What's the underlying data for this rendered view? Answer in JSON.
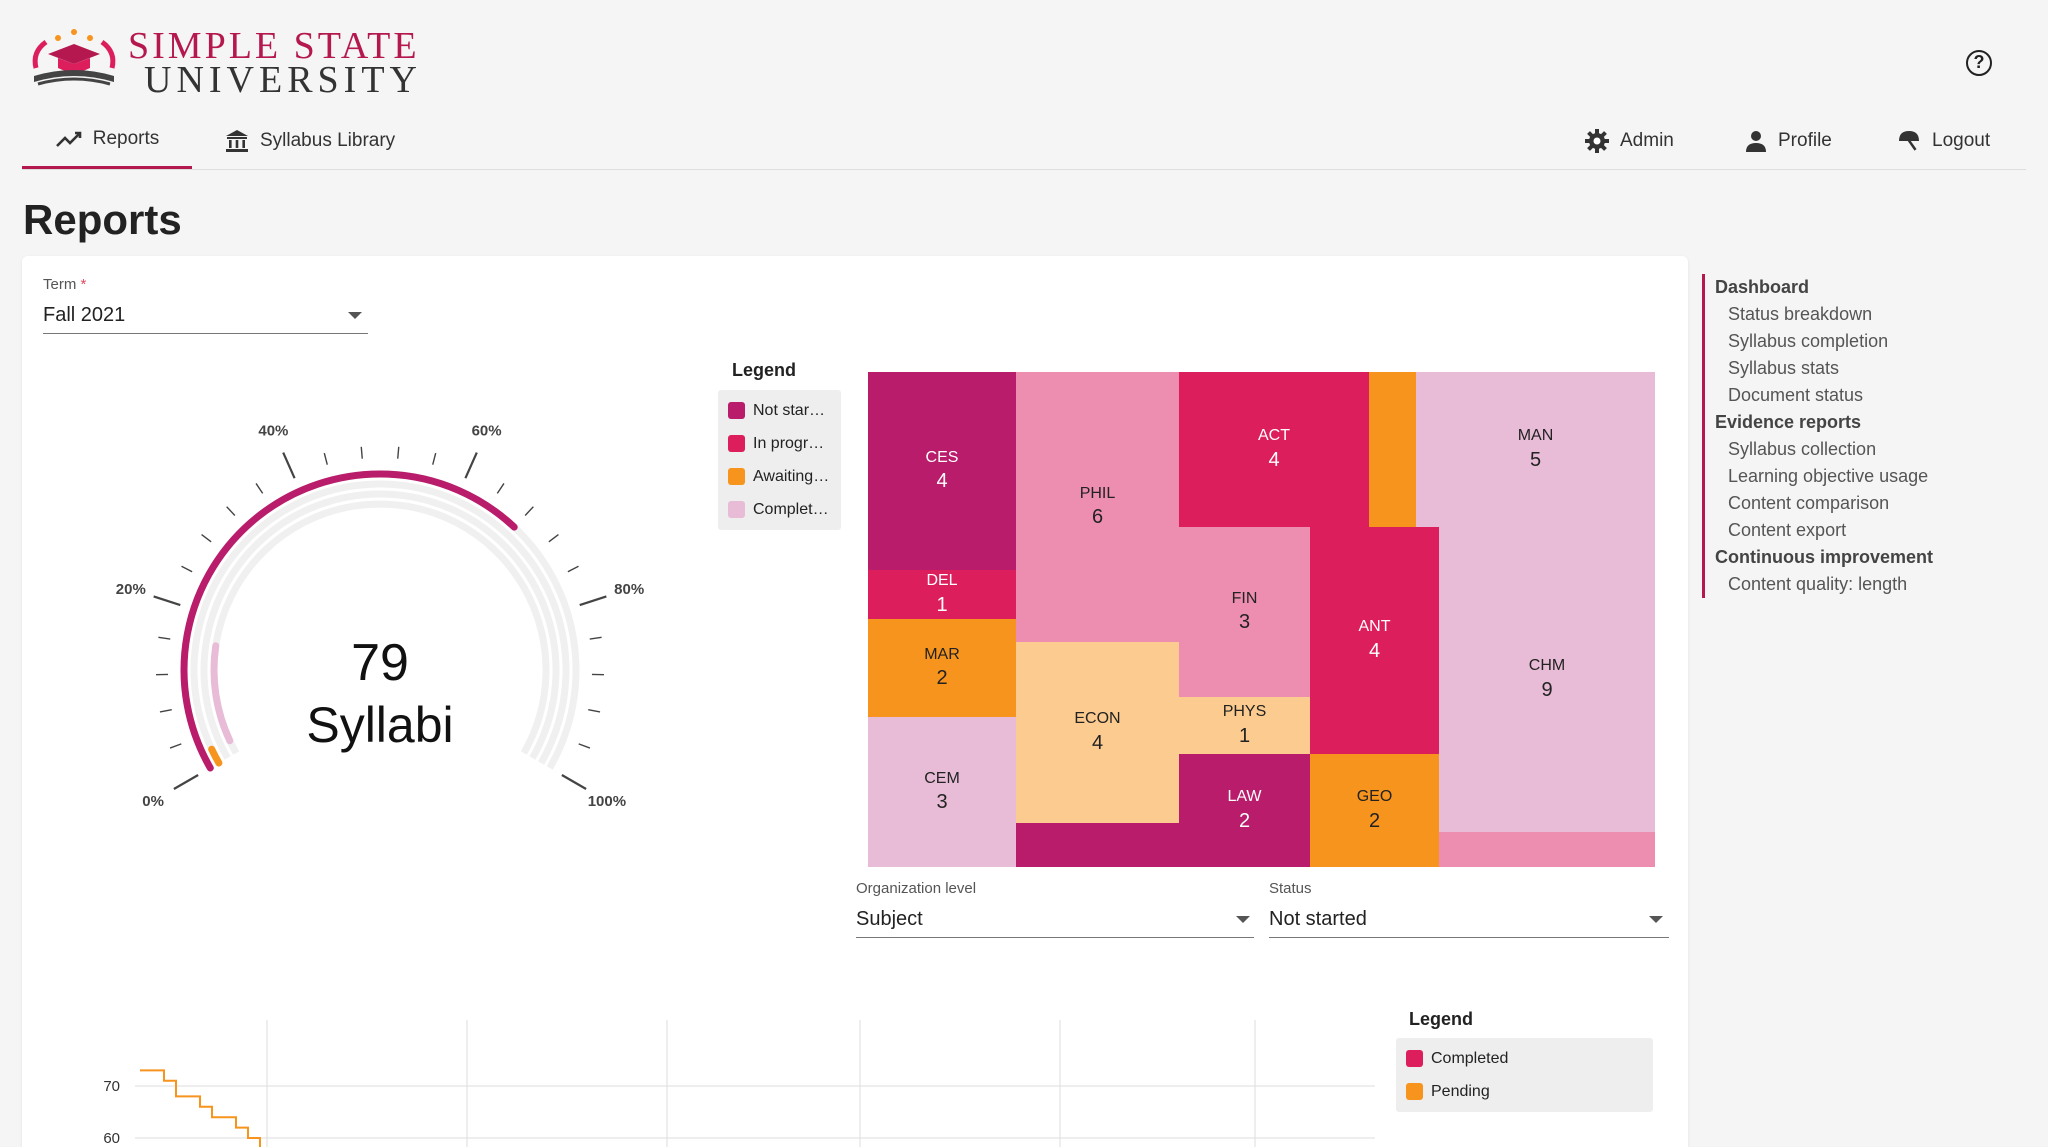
{
  "brand": {
    "name_line1": "SIMPLE STATE",
    "name_line2": "UNIVERSITY",
    "colors": {
      "primary": "#b5184f",
      "secondary": "#333333"
    }
  },
  "nav": {
    "tabs": [
      {
        "label": "Reports",
        "icon": "trend-line-icon",
        "active": true
      },
      {
        "label": "Syllabus Library",
        "icon": "library-building-icon",
        "active": false
      }
    ],
    "right": [
      {
        "label": "Admin",
        "icon": "gear-icon"
      },
      {
        "label": "Profile",
        "icon": "person-icon"
      },
      {
        "label": "Logout",
        "icon": "logout-icon"
      }
    ],
    "help_icon": "help-circle-icon",
    "help_glyph": "?"
  },
  "page": {
    "title": "Reports"
  },
  "filters": {
    "term": {
      "label": "Term",
      "required_mark": "*",
      "value": "Fall 2021"
    },
    "organization_level": {
      "label": "Organization level",
      "value": "Subject"
    },
    "status": {
      "label": "Status",
      "value": "Not started"
    }
  },
  "gauge": {
    "value": "79",
    "unit": "Syllabi",
    "tick_labels": [
      "0%",
      "20%",
      "40%",
      "60%",
      "80%",
      "100%"
    ],
    "fractions": {
      "not_started": 0.68,
      "in_progress": 0.16,
      "awaiting": 0.02
    }
  },
  "status_legend": {
    "title": "Legend",
    "items": [
      {
        "label": "Not star…",
        "color": "#b81c6b"
      },
      {
        "label": "In progr…",
        "color": "#dc1f5c"
      },
      {
        "label": "Awaiting…",
        "color": "#f7941d"
      },
      {
        "label": "Complet…",
        "color": "#e8bcd6"
      }
    ]
  },
  "treemap": {
    "tiles": [
      {
        "code": "CES",
        "count": "4"
      },
      {
        "code": "DEL",
        "count": "1"
      },
      {
        "code": "MAR",
        "count": "2"
      },
      {
        "code": "CEM",
        "count": "3"
      },
      {
        "code": "PHIL",
        "count": "6"
      },
      {
        "code": "ECON",
        "count": "4"
      },
      {
        "code": "ACT",
        "count": "4"
      },
      {
        "code": "FIN",
        "count": "3"
      },
      {
        "code": "PHYS",
        "count": "1"
      },
      {
        "code": "LAW",
        "count": "2"
      },
      {
        "code": "ANT",
        "count": "4"
      },
      {
        "code": "GEO",
        "count": "2"
      },
      {
        "code": "MAN",
        "count": "5"
      },
      {
        "code": "CHM",
        "count": "9"
      }
    ]
  },
  "chart_data": {
    "type": "line",
    "y_ticks": [
      "70",
      "60"
    ],
    "legend": {
      "title": "Legend",
      "items": [
        {
          "label": "Completed",
          "color": "#dc1f5c"
        },
        {
          "label": "Pending",
          "color": "#f7941d"
        }
      ]
    },
    "series": [
      {
        "name": "Pending",
        "color": "#f7941d",
        "values": [
          73,
          73,
          71,
          68,
          68,
          66,
          64,
          64,
          62,
          60,
          58
        ]
      }
    ]
  },
  "toc": {
    "sections": [
      {
        "heading": "Dashboard",
        "items": [
          "Status breakdown",
          "Syllabus completion",
          "Syllabus stats",
          "Document status"
        ]
      },
      {
        "heading": "Evidence reports",
        "items": [
          "Syllabus collection",
          "Learning objective usage",
          "Content comparison",
          "Content export"
        ]
      },
      {
        "heading": "Continuous improvement",
        "items": [
          "Content quality: length"
        ]
      }
    ]
  }
}
